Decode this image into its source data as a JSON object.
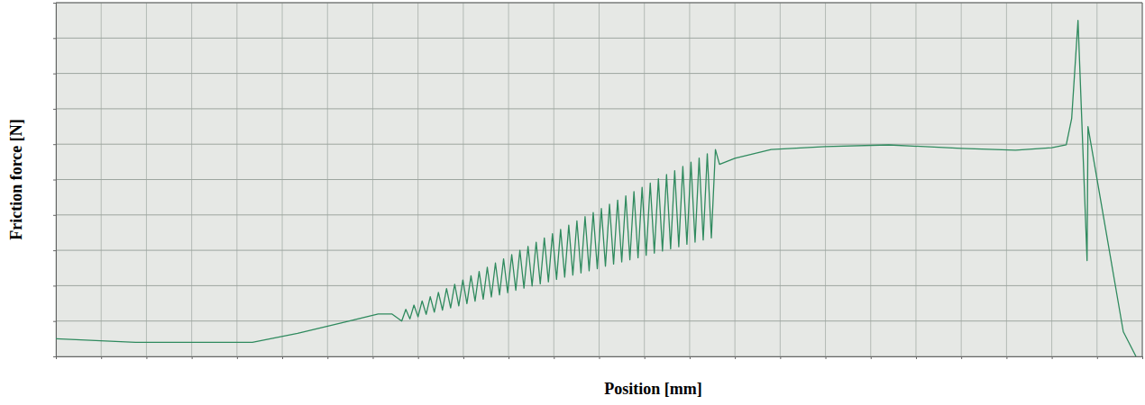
{
  "chart_data": {
    "type": "line",
    "x_label": "Position [mm]",
    "y_label": "Friction force [N]",
    "color": "#2f8a5e",
    "grid": true,
    "tick_labels": false,
    "xlim": [
      0,
      120
    ],
    "ylim": [
      0,
      10
    ],
    "xticks": [
      0,
      5,
      10,
      15,
      20,
      25,
      30,
      35,
      40,
      45,
      50,
      55,
      60,
      65,
      70,
      75,
      80,
      85,
      90,
      95,
      100,
      105,
      110,
      115,
      120
    ],
    "yticks": [
      0,
      1,
      2,
      3,
      4,
      5,
      6,
      7,
      8,
      9,
      10
    ],
    "x": [
      0,
      8.8,
      21.7,
      26.7,
      31.6,
      35.6,
      37.1,
      38.2,
      38.65,
      39.1,
      39.55,
      40.0,
      40.45,
      40.9,
      41.35,
      41.8,
      42.25,
      42.7,
      43.15,
      43.6,
      44.05,
      44.5,
      44.95,
      45.4,
      45.85,
      46.3,
      46.75,
      47.2,
      47.65,
      48.1,
      48.55,
      49.0,
      49.45,
      49.9,
      50.35,
      50.8,
      51.25,
      51.7,
      52.15,
      52.6,
      53.05,
      53.5,
      53.95,
      54.4,
      54.85,
      55.3,
      55.75,
      56.2,
      56.65,
      57.1,
      57.55,
      58.0,
      58.45,
      58.9,
      59.35,
      59.8,
      60.25,
      60.7,
      61.15,
      61.6,
      62.05,
      62.5,
      62.95,
      63.4,
      63.85,
      64.3,
      64.75,
      65.2,
      65.65,
      66.1,
      66.55,
      67.0,
      67.45,
      67.9,
      68.35,
      68.8,
      69.25,
      69.7,
      70.15,
      70.6,
      71.05,
      71.5,
      71.95,
      72.4,
      72.85,
      73.3,
      75,
      79,
      85,
      92,
      100,
      106,
      110,
      111.6,
      112.2,
      112.9,
      113.9,
      114.0,
      117.9,
      119.3
    ],
    "values": [
      0.5,
      0.4,
      0.4,
      0.65,
      0.95,
      1.2,
      1.2,
      1.0,
      1.33,
      1.06,
      1.45,
      1.12,
      1.57,
      1.19,
      1.69,
      1.25,
      1.81,
      1.31,
      1.92,
      1.37,
      2.04,
      1.43,
      2.16,
      1.49,
      2.28,
      1.56,
      2.4,
      1.62,
      2.52,
      1.68,
      2.64,
      1.74,
      2.76,
      1.8,
      2.88,
      1.87,
      3.0,
      1.93,
      3.11,
      1.99,
      3.23,
      2.05,
      3.35,
      2.11,
      3.47,
      2.18,
      3.59,
      2.24,
      3.71,
      2.3,
      3.83,
      2.36,
      3.95,
      2.42,
      4.07,
      2.48,
      4.18,
      2.55,
      4.3,
      2.61,
      4.42,
      2.67,
      4.54,
      2.73,
      4.66,
      2.79,
      4.78,
      2.86,
      4.9,
      2.92,
      5.02,
      2.98,
      5.14,
      3.04,
      5.25,
      3.1,
      5.37,
      3.17,
      5.49,
      3.23,
      5.61,
      3.29,
      5.73,
      3.35,
      5.85,
      5.43,
      5.6,
      5.85,
      5.93,
      5.98,
      5.88,
      5.83,
      5.9,
      5.98,
      6.73,
      9.5,
      2.71,
      6.5,
      0.7,
      0.0
    ]
  }
}
